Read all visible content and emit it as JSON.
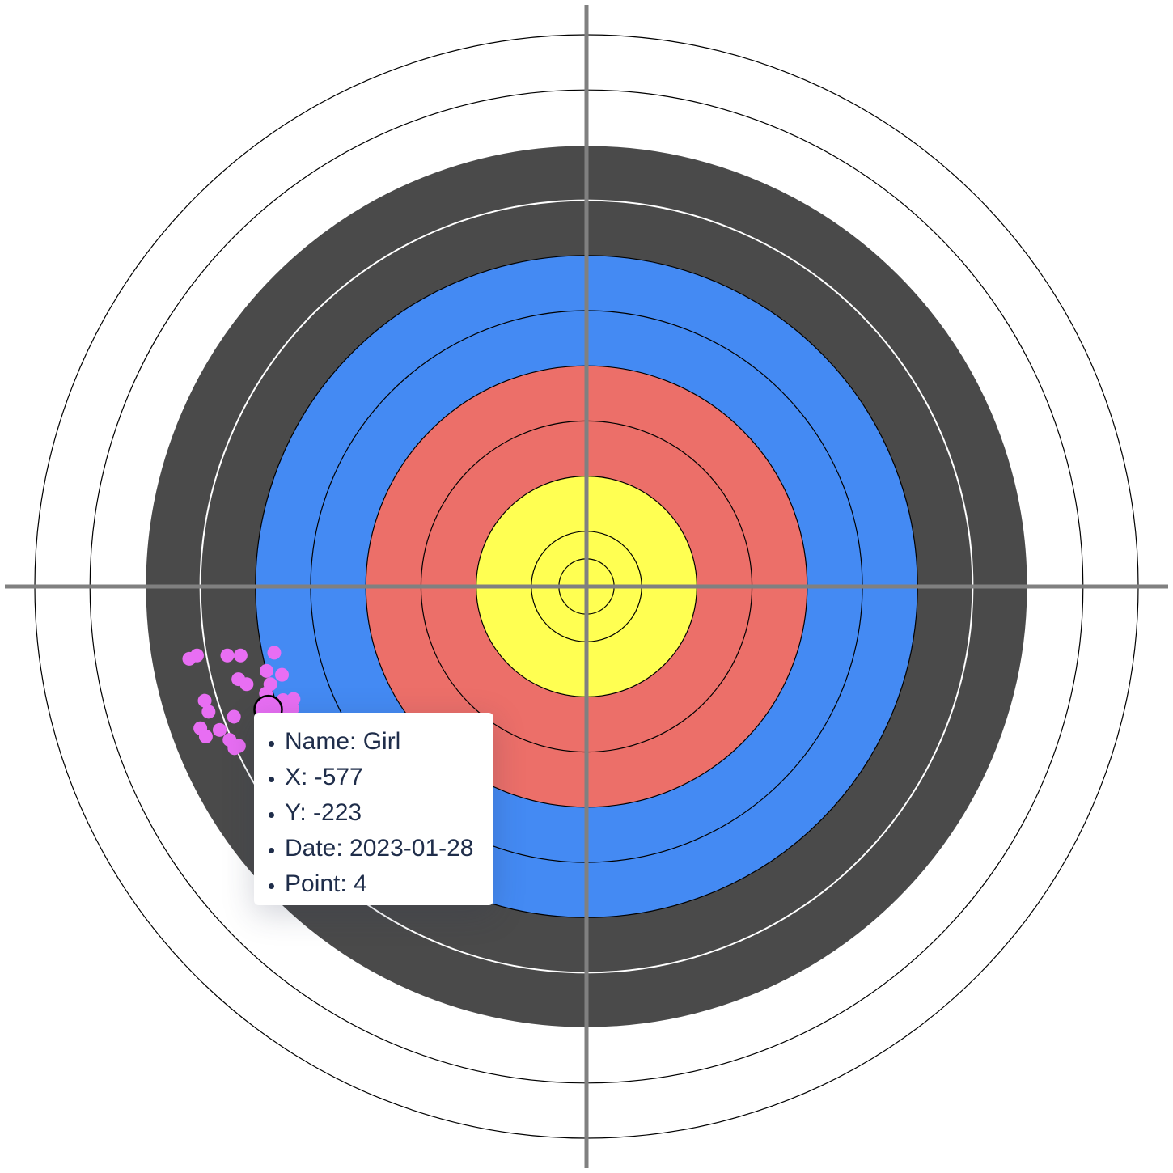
{
  "colors": {
    "ring_white": "#ffffff",
    "ring_black": "#4a4a4a",
    "ring_blue": "#448af3",
    "ring_red": "#ec6f69",
    "ring_gold": "#ffff52",
    "crosshair": "#808080",
    "shot": "#e86ef3",
    "tooltip_text": "#1f2d4a"
  },
  "tooltip": {
    "name": "Name: Girl",
    "x": "X: -577",
    "y": "Y: -223",
    "date": "Date: 2023-01-28",
    "point": "Point: 4"
  },
  "chart_data": {
    "type": "scatter",
    "description_units": "target coordinates, origin at center",
    "target_radius": 1000,
    "zones": [
      {
        "outer_radius": 1000,
        "color": "ring_white"
      },
      {
        "outer_radius": 900,
        "color": "ring_white"
      },
      {
        "outer_radius": 800,
        "color": "ring_black"
      },
      {
        "outer_radius": 700,
        "color": "ring_black"
      },
      {
        "outer_radius": 600,
        "color": "ring_blue"
      },
      {
        "outer_radius": 500,
        "color": "ring_blue"
      },
      {
        "outer_radius": 400,
        "color": "ring_red"
      },
      {
        "outer_radius": 300,
        "color": "ring_red"
      },
      {
        "outer_radius": 200,
        "color": "ring_gold"
      },
      {
        "outer_radius": 100,
        "color": "ring_gold"
      },
      {
        "outer_radius": 50,
        "color": "ring_gold"
      }
    ],
    "series": [
      {
        "name": "Girl",
        "points": [
          [
            -720,
            -131
          ],
          [
            -706,
            -125
          ],
          [
            -651,
            -125
          ],
          [
            -627,
            -125
          ],
          [
            -566,
            -120
          ],
          [
            -580,
            -153
          ],
          [
            -552,
            -160
          ],
          [
            -631,
            -168
          ],
          [
            -616,
            -177
          ],
          [
            -573,
            -177
          ],
          [
            -581,
            -194
          ],
          [
            -692,
            -207
          ],
          [
            -685,
            -227
          ],
          [
            -639,
            -236
          ],
          [
            -700,
            -257
          ],
          [
            -665,
            -260
          ],
          [
            -690,
            -272
          ],
          [
            -647,
            -278
          ],
          [
            -630,
            -289
          ],
          [
            -638,
            -293
          ],
          [
            -550,
            -206
          ],
          [
            -545,
            -213
          ],
          [
            -531,
            -204
          ],
          [
            -533,
            -221
          ],
          [
            -552,
            -236
          ]
        ],
        "highlighted": {
          "x": -577,
          "y": -223,
          "date": "2023-01-28",
          "point": 4
        }
      }
    ]
  }
}
